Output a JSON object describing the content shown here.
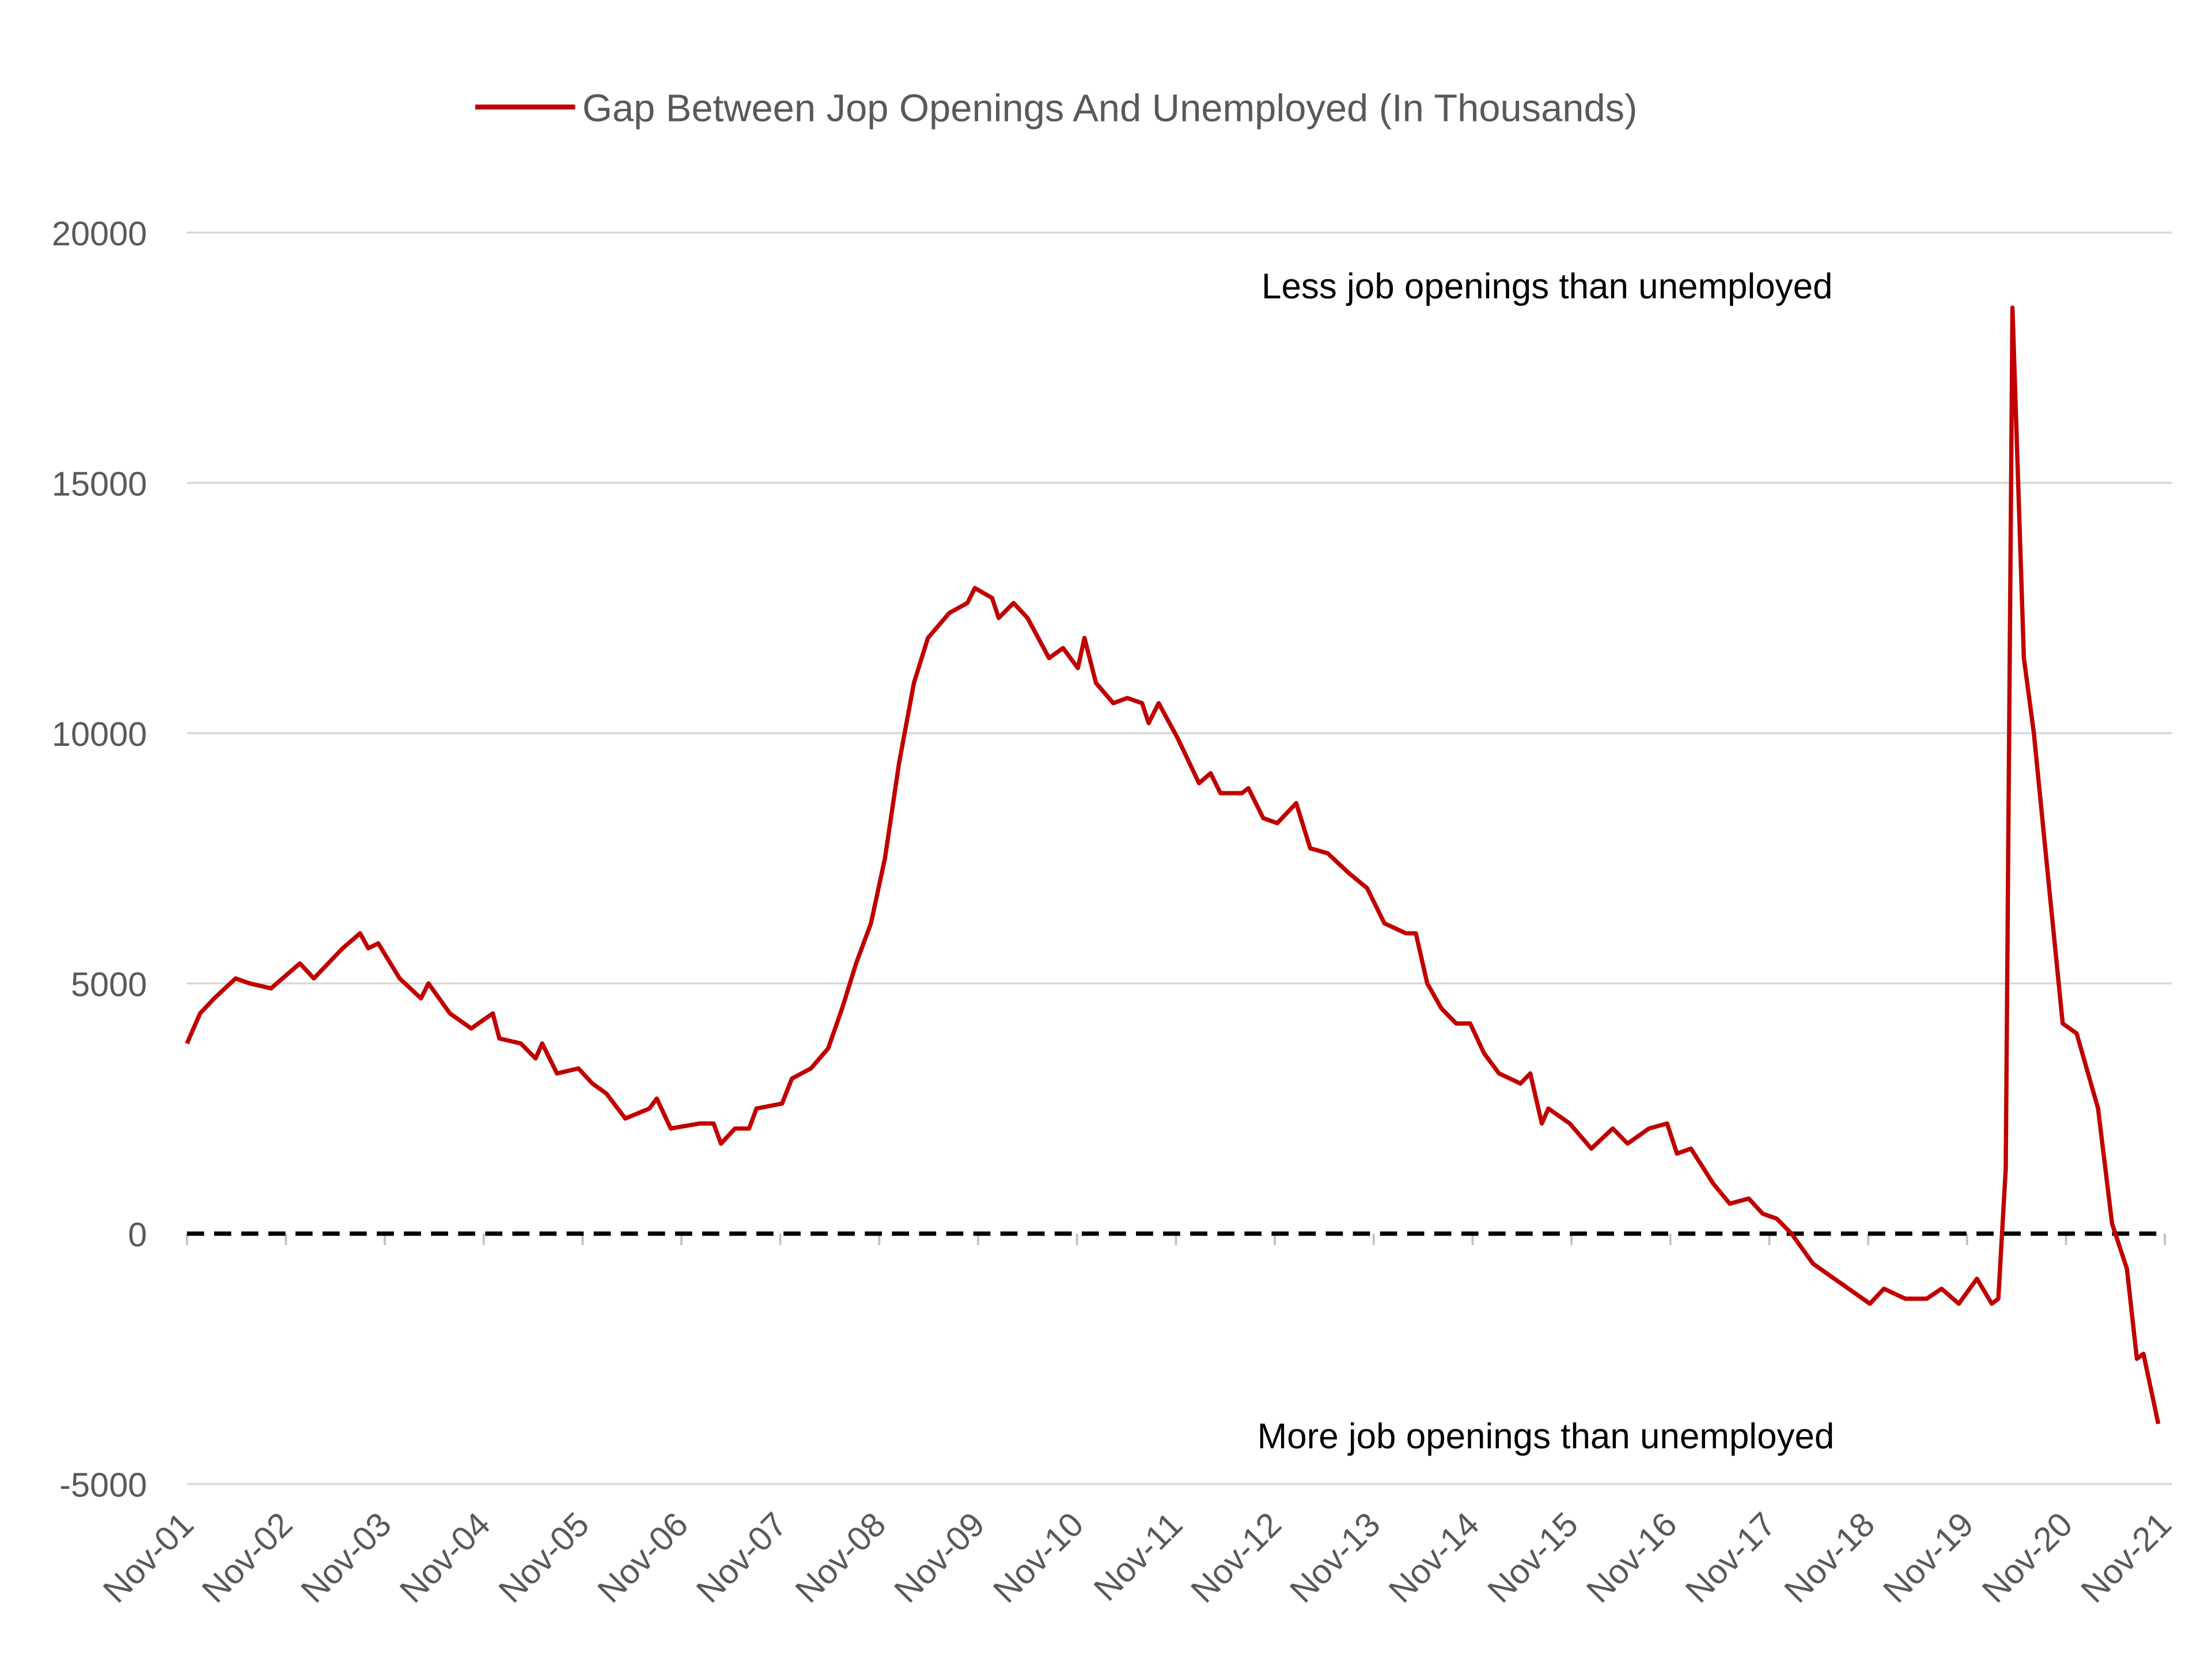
{
  "chart_data": {
    "type": "line",
    "title": "",
    "xlabel": "",
    "ylabel": "",
    "x_unit": "months since Nov-01",
    "xlim": [
      0,
      240
    ],
    "ylim": [
      -5000,
      20000
    ],
    "yticks": [
      20000,
      15000,
      10000,
      5000,
      0,
      -5000
    ],
    "ytick_labels": [
      "20000",
      "15000",
      "10000",
      "5000",
      "0",
      "-5000"
    ],
    "xtick_labels": [
      "Nov-01",
      "Nov-02",
      "Nov-03",
      "Nov-04",
      "Nov-05",
      "Nov-06",
      "Nov-07",
      "Nov-08",
      "Nov-09",
      "Nov-10",
      "Nov-11",
      "Nov-12",
      "Nov-13",
      "Nov-14",
      "Nov-15",
      "Nov-16",
      "Nov-17",
      "Nov-18",
      "Nov-19",
      "Nov-20",
      "Nov-21"
    ],
    "grid": true,
    "legend_position": "top-center",
    "reference_line": {
      "y": 0,
      "style": "dashed",
      "color": "#000000"
    },
    "annotations": {
      "upper": "Less job openings than unemployed",
      "lower": "More job openings than unemployed"
    },
    "series": [
      {
        "name": "Gap Between Jop Openings And Unemployed (In Thousands)",
        "color": "#c00000",
        "x": [
          0,
          1.6,
          3.3,
          5.9,
          7.6,
          10.2,
          13.7,
          15.4,
          18.9,
          21,
          22,
          23.2,
          25.8,
          28.4,
          29.3,
          31.9,
          34.5,
          37.1,
          37.9,
          40.5,
          42.3,
          43.1,
          44.9,
          47.5,
          49.2,
          50.9,
          53.2,
          56.1,
          57,
          58.7,
          62.2,
          63.9,
          64.8,
          66.5,
          68.2,
          69.1,
          72.2,
          73.4,
          75.7,
          77.8,
          79.5,
          81.2,
          83,
          84.7,
          86.4,
          88.2,
          89.9,
          92.5,
          94.7,
          95.6,
          97.7,
          98.5,
          100.3,
          102,
          104.6,
          106.3,
          108.1,
          108.9,
          110.3,
          112.4,
          114.1,
          115.9,
          116.7,
          117.9,
          120.2,
          122.8,
          124.2,
          125.4,
          128,
          128.8,
          130.6,
          132.3,
          134.6,
          136.3,
          138.4,
          141,
          143.2,
          145.3,
          147.9,
          149.1,
          150.5,
          152.2,
          154,
          155.7,
          157.4,
          159.2,
          161.8,
          163,
          164.4,
          165.2,
          167.8,
          170.4,
          173,
          174.8,
          177.4,
          179.6,
          180.8,
          182.5,
          185.2,
          187.2,
          189.5,
          191.2,
          192.9,
          194.7,
          197.3,
          199.9,
          202.5,
          204.2,
          205.9,
          208.5,
          211.1,
          212.9,
          215,
          217.2,
          219,
          219.8,
          220.7,
          221.5,
          222.9,
          224.1,
          225.9,
          227.6,
          229.3,
          231.9,
          233.6,
          235.4,
          236.6,
          237.4,
          239.2
        ],
        "values": [
          3800,
          4400,
          4700,
          5100,
          5000,
          4900,
          5400,
          5100,
          5700,
          6000,
          5700,
          5800,
          5100,
          4700,
          5000,
          4400,
          4100,
          4400,
          3900,
          3800,
          3500,
          3800,
          3200,
          3300,
          3000,
          2800,
          2300,
          2500,
          2700,
          2100,
          2200,
          2200,
          1800,
          2100,
          2100,
          2500,
          2600,
          3100,
          3300,
          3700,
          4500,
          5400,
          6200,
          7500,
          9400,
          11000,
          11900,
          12400,
          12600,
          12900,
          12700,
          12300,
          12600,
          12300,
          11500,
          11700,
          11300,
          11900,
          11000,
          10600,
          10700,
          10600,
          10200,
          10600,
          9900,
          9000,
          9200,
          8800,
          8800,
          8900,
          8300,
          8200,
          8600,
          7700,
          7600,
          7200,
          6900,
          6200,
          6000,
          6000,
          5000,
          4500,
          4200,
          4200,
          3600,
          3200,
          3000,
          3200,
          2200,
          2500,
          2200,
          1700,
          2100,
          1800,
          2100,
          2200,
          1600,
          1700,
          1000,
          600,
          700,
          400,
          300,
          0,
          -600,
          -900,
          -1200,
          -1400,
          -1100,
          -1300,
          -1300,
          -1100,
          -1400,
          -900,
          -1400,
          -1300,
          1300,
          18500,
          11500,
          10000,
          7000,
          4200,
          4000,
          2500,
          200,
          -700,
          -2500,
          -2400,
          -3800
        ]
      }
    ]
  }
}
